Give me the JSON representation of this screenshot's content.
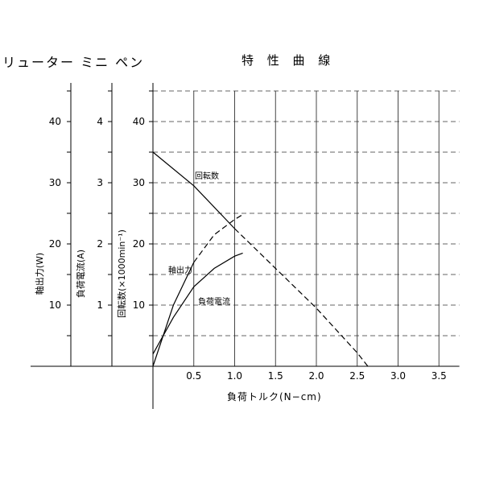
{
  "header": {
    "product_title": "リューター ミニ ペン",
    "chart_title": "特 性 曲 線"
  },
  "chart_data": {
    "type": "line",
    "xlabel": "負荷トルク(N−cm)",
    "x_ticks": [
      "0.5",
      "1.0",
      "1.5",
      "2.0",
      "2.5",
      "3.0",
      "3.5"
    ],
    "xlim": [
      0,
      3.75
    ],
    "axes": [
      {
        "label": "軸出力(W)",
        "ticks": [
          "10",
          "20",
          "30",
          "40"
        ],
        "ylim": [
          0,
          45
        ]
      },
      {
        "label": "負荷電流(A)",
        "ticks": [
          "1",
          "2",
          "3",
          "4"
        ],
        "ylim": [
          0,
          4.5
        ]
      },
      {
        "label": "回転数(×1000min⁻¹)",
        "ticks": [
          "10",
          "20",
          "30",
          "40"
        ],
        "ylim": [
          0,
          45
        ]
      }
    ],
    "series": [
      {
        "name": "回転数",
        "axis": "回転数(×1000min⁻¹)",
        "x": [
          0,
          0.5,
          1.0,
          1.5,
          2.0,
          2.5,
          2.63
        ],
        "y": [
          35,
          29.5,
          22.5,
          16,
          9.5,
          2.2,
          0
        ]
      },
      {
        "name": "軸出力",
        "axis": "軸出力(W)",
        "x": [
          0,
          0.25,
          0.5,
          0.75,
          1.0,
          1.1
        ],
        "y": [
          0,
          10,
          17,
          21.5,
          24,
          24.8
        ]
      },
      {
        "name": "負荷電流",
        "axis": "負荷電流(A)",
        "x": [
          0,
          0.25,
          0.5,
          0.75,
          1.0,
          1.1
        ],
        "y": [
          0.2,
          0.8,
          1.3,
          1.6,
          1.8,
          1.85
        ]
      }
    ],
    "grid": true
  }
}
